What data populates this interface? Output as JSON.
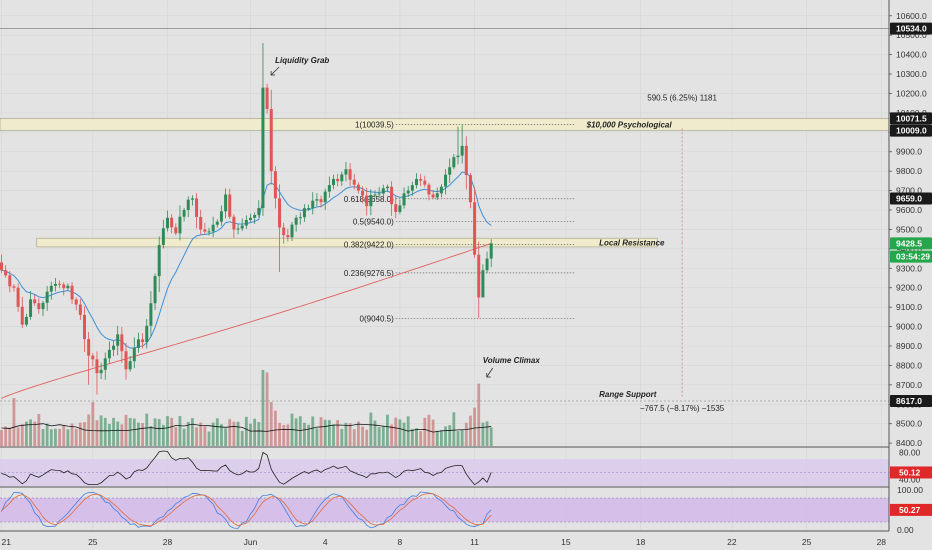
{
  "chart_data": {
    "type": "candlestick",
    "symbol_unit": "USD",
    "x_axis": {
      "tick_labels": [
        "21",
        "25",
        "28",
        "Jun",
        "4",
        "8",
        "11",
        "15",
        "18",
        "22",
        "25",
        "28"
      ],
      "tick_bar_index": [
        0,
        22,
        40,
        60,
        78,
        96,
        114,
        136,
        154,
        176,
        194,
        212
      ]
    },
    "price_axis": {
      "range": [
        8380,
        10640
      ],
      "ticks": [
        10600,
        10500,
        10400,
        10300,
        10200,
        10100,
        10000,
        9900,
        9800,
        9700,
        9600,
        9500,
        9400,
        9300,
        9200,
        9100,
        9000,
        8900,
        8800,
        8700,
        8600,
        8500,
        8400
      ],
      "tick_labels": [
        "10600.0",
        "10500.0",
        "10400.0",
        "10300.0",
        "10200.0",
        "10100.0",
        "10000.0",
        "9900.0",
        "9800.0",
        "9700.0",
        "9600.0",
        "9500.0",
        "9400.0",
        "9300.0",
        "9200.0",
        "9100.0",
        "9000.0",
        "8900.0",
        "8800.0",
        "8700.0",
        "8600.0",
        "8500.0",
        "8400.0"
      ],
      "markers": [
        {
          "price": 10534.0,
          "label": "10534.0",
          "color": "#1a1a1a"
        },
        {
          "price": 10071.5,
          "label": "10071.5",
          "color": "#1a1a1a"
        },
        {
          "price": 10009.0,
          "label": "10009.0",
          "color": "#1a1a1a"
        },
        {
          "price": 9659.0,
          "label": "9659.0",
          "color": "#1a1a1a"
        },
        {
          "price": 9428.5,
          "label": "9428.5",
          "color": "#26a64a"
        },
        {
          "price": 9360,
          "label": "03:54:29",
          "color": "#26a64a"
        },
        {
          "price": 8617.0,
          "label": "8617.0",
          "color": "#1a1a1a"
        }
      ]
    },
    "zones": [
      {
        "name": "$10,000 Psychological",
        "from": 10009.0,
        "to": 10071.5
      },
      {
        "name": "Local Resistance",
        "from": 9410,
        "to": 9455
      }
    ],
    "fibonacci": [
      {
        "level": "1",
        "price": 10039.5,
        "label": "1(10039.5)"
      },
      {
        "level": "0.618",
        "price": 9658.0,
        "label": "0.618(9658.0)"
      },
      {
        "level": "0.5",
        "price": 9540.0,
        "label": "0.5(9540.0)"
      },
      {
        "level": "0.382",
        "price": 9422.0,
        "label": "0.382(9422.0)"
      },
      {
        "level": "0.236",
        "price": 9276.5,
        "label": "0.236(9276.5)"
      },
      {
        "level": "0",
        "price": 9040.5,
        "label": "0(9040.5)"
      }
    ],
    "annotations": {
      "liquidity_grab": "Liquidity Grab",
      "volume_climax": "Volume Climax",
      "psychological": "$10,000 Psychological",
      "local_resistance": "Local Resistance",
      "range_support": "Range Support",
      "measure_up": "590.5 (6.25%) 1181",
      "measure_down": "−767.5 (−8.17%) −1535"
    },
    "anchors": {
      "liquidity_grab_bar": 64,
      "volume_climax_bar": 115,
      "measure_bar": 164,
      "range_support_price": 8617.0
    },
    "rsi": {
      "range": [
        30,
        85
      ],
      "ticks": [
        80,
        40
      ],
      "tick_labels": [
        "80.00",
        "40.00"
      ],
      "band": [
        30,
        70
      ],
      "current": "50.12",
      "current_value": 50.12
    },
    "stoch": {
      "range": [
        0,
        105
      ],
      "ticks": [
        100,
        0
      ],
      "tick_labels": [
        "100.00",
        "0.00"
      ],
      "band": [
        20,
        80
      ],
      "current": "50.27",
      "current_value": 50.27
    },
    "anchor_bars": [
      {
        "i": 0,
        "close": 9290
      },
      {
        "i": 3,
        "close": 9200
      },
      {
        "i": 5,
        "close": 9010
      },
      {
        "i": 7,
        "close": 9140
      },
      {
        "i": 9,
        "close": 9090
      },
      {
        "i": 11,
        "close": 9180
      },
      {
        "i": 13,
        "close": 9220
      },
      {
        "i": 16,
        "close": 9210
      },
      {
        "i": 19,
        "close": 9060
      },
      {
        "i": 21,
        "close": 8850
      },
      {
        "i": 23,
        "close": 8760
      },
      {
        "i": 26,
        "close": 8880
      },
      {
        "i": 28,
        "close": 8960
      },
      {
        "i": 30,
        "close": 8780
      },
      {
        "i": 32,
        "close": 8890
      },
      {
        "i": 34,
        "close": 8920
      },
      {
        "i": 36,
        "close": 9120
      },
      {
        "i": 38,
        "close": 9420
      },
      {
        "i": 40,
        "close": 9560
      },
      {
        "i": 42,
        "close": 9480
      },
      {
        "i": 44,
        "close": 9600
      },
      {
        "i": 46,
        "close": 9660
      },
      {
        "i": 48,
        "close": 9500
      },
      {
        "i": 50,
        "close": 9490
      },
      {
        "i": 52,
        "close": 9540
      },
      {
        "i": 54,
        "close": 9680
      },
      {
        "i": 56,
        "close": 9500
      },
      {
        "i": 58,
        "close": 9520
      },
      {
        "i": 60,
        "close": 9560
      },
      {
        "i": 62,
        "close": 9610
      },
      {
        "i": 63,
        "close": 10230
      },
      {
        "i": 64,
        "close": 10120
      },
      {
        "i": 65,
        "close": 9800
      },
      {
        "i": 66,
        "close": 9660
      },
      {
        "i": 67,
        "close": 9510
      },
      {
        "i": 69,
        "close": 9460
      },
      {
        "i": 71,
        "close": 9560
      },
      {
        "i": 74,
        "close": 9610
      },
      {
        "i": 77,
        "close": 9640
      },
      {
        "i": 80,
        "close": 9760
      },
      {
        "i": 83,
        "close": 9810
      },
      {
        "i": 86,
        "close": 9700
      },
      {
        "i": 88,
        "close": 9620
      },
      {
        "i": 90,
        "close": 9680
      },
      {
        "i": 93,
        "close": 9720
      },
      {
        "i": 95,
        "close": 9590
      },
      {
        "i": 98,
        "close": 9700
      },
      {
        "i": 100,
        "close": 9760
      },
      {
        "i": 103,
        "close": 9680
      },
      {
        "i": 106,
        "close": 9720
      },
      {
        "i": 108,
        "close": 9820
      },
      {
        "i": 110,
        "close": 9880
      },
      {
        "i": 111,
        "close": 9930
      },
      {
        "i": 112,
        "close": 9780
      },
      {
        "i": 113,
        "close": 9640
      },
      {
        "i": 114,
        "close": 9370
      },
      {
        "i": 115,
        "close": 9150
      },
      {
        "i": 116,
        "close": 9290
      },
      {
        "i": 117,
        "close": 9350
      },
      {
        "i": 118,
        "close": 9428.5
      }
    ]
  }
}
